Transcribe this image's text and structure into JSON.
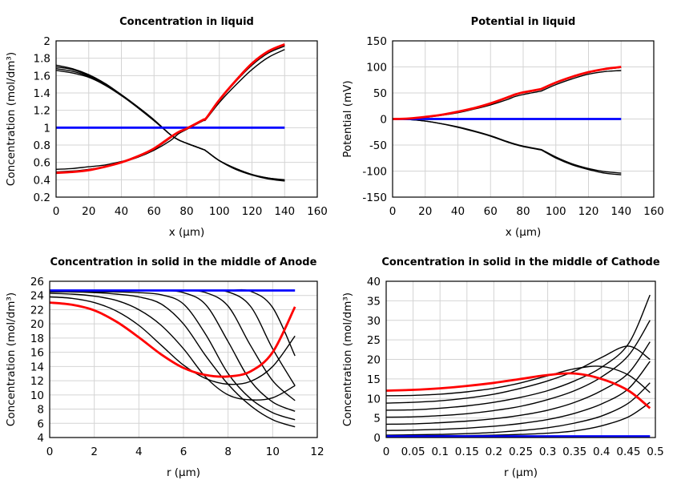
{
  "chart_data": [
    {
      "type": "line",
      "title": "Concentration in liquid",
      "xlabel": "x (µm)",
      "ylabel": "Concentration (mol/dm³)",
      "xlim": [
        0,
        160
      ],
      "ylim": [
        0.2,
        2
      ],
      "xticks": [
        "0",
        "20",
        "40",
        "60",
        "80",
        "100",
        "120",
        "140",
        "160"
      ],
      "yticks": [
        "0.2",
        "0.4",
        "0.6",
        "0.8",
        "1",
        "1.2",
        "1.4",
        "1.6",
        "1.8",
        "2"
      ],
      "grid": true,
      "x": [
        0,
        10,
        20,
        30,
        40,
        50,
        60,
        70,
        75,
        80,
        90,
        92,
        100,
        110,
        120,
        130,
        140
      ],
      "series": [
        {
          "color": "#000000",
          "values": [
            1.72,
            1.68,
            1.61,
            1.51,
            1.38,
            1.24,
            1.09,
            0.92,
            0.86,
            0.82,
            0.75,
            0.73,
            0.62,
            0.53,
            0.46,
            0.42,
            0.4
          ]
        },
        {
          "color": "#000000",
          "values": [
            1.7,
            1.67,
            1.6,
            1.5,
            1.38,
            1.24,
            1.09,
            0.92,
            0.86,
            0.82,
            0.75,
            0.73,
            0.62,
            0.53,
            0.46,
            0.42,
            0.395
          ]
        },
        {
          "color": "#000000",
          "values": [
            1.68,
            1.65,
            1.59,
            1.49,
            1.37,
            1.24,
            1.09,
            0.92,
            0.86,
            0.82,
            0.75,
            0.73,
            0.62,
            0.53,
            0.46,
            0.415,
            0.39
          ]
        },
        {
          "color": "#000000",
          "values": [
            1.66,
            1.63,
            1.58,
            1.49,
            1.37,
            1.23,
            1.08,
            0.92,
            0.86,
            0.82,
            0.75,
            0.73,
            0.62,
            0.52,
            0.455,
            0.41,
            0.385
          ]
        },
        {
          "color": "#000000",
          "values": [
            0.52,
            0.53,
            0.55,
            0.57,
            0.61,
            0.66,
            0.74,
            0.85,
            0.93,
            0.98,
            1.08,
            1.1,
            1.29,
            1.49,
            1.67,
            1.81,
            1.9
          ]
        },
        {
          "color": "#000000",
          "values": [
            0.49,
            0.5,
            0.52,
            0.55,
            0.6,
            0.66,
            0.75,
            0.88,
            0.95,
            0.99,
            1.08,
            1.1,
            1.31,
            1.53,
            1.72,
            1.86,
            1.94
          ]
        },
        {
          "color": "#0000ff",
          "values": [
            1,
            1,
            1,
            1,
            1,
            1,
            1,
            1,
            1,
            1,
            1,
            1,
            1,
            1,
            1,
            1,
            1
          ]
        },
        {
          "color": "#ff0000",
          "values": [
            0.48,
            0.49,
            0.51,
            0.55,
            0.6,
            0.67,
            0.76,
            0.89,
            0.95,
            0.99,
            1.09,
            1.11,
            1.32,
            1.54,
            1.74,
            1.88,
            1.96
          ]
        }
      ]
    },
    {
      "type": "line",
      "title": "Potential in liquid",
      "xlabel": "x (µm)",
      "ylabel": "Potential (mV)",
      "xlim": [
        0,
        160
      ],
      "ylim": [
        -150,
        150
      ],
      "xticks": [
        "0",
        "20",
        "40",
        "60",
        "80",
        "100",
        "120",
        "140",
        "160"
      ],
      "yticks": [
        "-150",
        "-100",
        "-50",
        "0",
        "50",
        "100",
        "150"
      ],
      "grid": true,
      "x": [
        0,
        10,
        20,
        30,
        40,
        50,
        60,
        70,
        75,
        80,
        90,
        92,
        100,
        110,
        120,
        130,
        140
      ],
      "series": [
        {
          "color": "#000000",
          "values": [
            0,
            1,
            3,
            7,
            12,
            19,
            27,
            37,
            43,
            47,
            53,
            55,
            66,
            77,
            86,
            91,
            93
          ]
        },
        {
          "color": "#000000",
          "values": [
            0,
            1,
            4,
            8,
            13,
            20,
            29,
            40,
            46,
            50,
            56,
            58,
            69,
            80,
            89,
            95,
            99
          ]
        },
        {
          "color": "#000000",
          "values": [
            0,
            -1,
            -4,
            -9,
            -15,
            -23,
            -32,
            -43,
            -48,
            -52,
            -58,
            -60,
            -73,
            -86,
            -95,
            -101,
            -104
          ]
        },
        {
          "color": "#000000",
          "values": [
            0,
            -1,
            -4,
            -9,
            -16,
            -24,
            -33,
            -44,
            -49,
            -53,
            -59,
            -61,
            -75,
            -88,
            -97,
            -104,
            -107
          ]
        },
        {
          "color": "#0000ff",
          "values": [
            0,
            0,
            0,
            0,
            0,
            0,
            0,
            0,
            0,
            0,
            0,
            0,
            0,
            0,
            0,
            0,
            0
          ]
        },
        {
          "color": "#ff0000",
          "values": [
            0,
            1,
            4,
            8,
            14,
            21,
            30,
            41,
            47,
            51,
            57,
            59,
            70,
            81,
            90,
            96,
            100
          ]
        }
      ]
    },
    {
      "type": "line",
      "title": "Concentration in solid in the middle of Anode",
      "xlabel": "r (µm)",
      "ylabel": "Concentration (mol/dm³)",
      "xlim": [
        0,
        12
      ],
      "ylim": [
        4,
        26
      ],
      "xticks": [
        "0",
        "2",
        "4",
        "6",
        "8",
        "10",
        "12"
      ],
      "yticks": [
        "4",
        "6",
        "8",
        "10",
        "12",
        "14",
        "16",
        "18",
        "20",
        "22",
        "24",
        "26"
      ],
      "grid": true,
      "x": [
        0,
        1,
        2,
        3,
        4,
        5,
        6,
        7,
        8,
        9,
        10,
        11
      ],
      "series": [
        {
          "color": "#000000",
          "values": [
            24.7,
            24.7,
            24.7,
            24.7,
            24.7,
            24.7,
            24.7,
            24.7,
            24.7,
            24.6,
            22.3,
            15.5
          ]
        },
        {
          "color": "#000000",
          "values": [
            24.7,
            24.7,
            24.7,
            24.7,
            24.7,
            24.7,
            24.7,
            24.7,
            24.5,
            22.5,
            16.5,
            11.3
          ]
        },
        {
          "color": "#000000",
          "values": [
            24.7,
            24.7,
            24.7,
            24.7,
            24.7,
            24.7,
            24.7,
            24.4,
            22.5,
            17,
            12,
            9.2
          ]
        },
        {
          "color": "#000000",
          "values": [
            24.7,
            24.7,
            24.7,
            24.7,
            24.7,
            24.7,
            24.4,
            22.7,
            17.5,
            12,
            9,
            7.7
          ]
        },
        {
          "color": "#000000",
          "values": [
            24.6,
            24.6,
            24.5,
            24.5,
            24.4,
            24.1,
            22.8,
            18.5,
            13,
            9.5,
            7.5,
            6.5
          ]
        },
        {
          "color": "#000000",
          "values": [
            24.5,
            24.5,
            24.4,
            24.2,
            23.8,
            22.8,
            20,
            15.5,
            11.5,
            8.5,
            6.5,
            5.5
          ]
        },
        {
          "color": "#000000",
          "values": [
            24.3,
            24.2,
            23.9,
            23.3,
            22,
            19.8,
            16.5,
            12.5,
            10,
            9.3,
            9.6,
            11.3
          ]
        },
        {
          "color": "#000000",
          "values": [
            23.8,
            23.6,
            23,
            21.8,
            19.8,
            17,
            14.2,
            12.3,
            11.5,
            11.9,
            14,
            18.3
          ]
        },
        {
          "color": "#0000ff",
          "values": [
            24.7,
            24.7,
            24.7,
            24.7,
            24.7,
            24.7,
            24.7,
            24.7,
            24.7,
            24.7,
            24.7,
            24.7
          ]
        },
        {
          "color": "#ff0000",
          "values": [
            23,
            22.7,
            21.9,
            20.3,
            18.1,
            15.7,
            13.8,
            12.8,
            12.6,
            13.3,
            16,
            22.4
          ]
        }
      ]
    },
    {
      "type": "line",
      "title": "Concentration in solid in the middle of Cathode",
      "xlabel": "r (µm)",
      "ylabel": "Concentration (mol/dm³)",
      "xlim": [
        0,
        0.5
      ],
      "ylim": [
        0,
        40
      ],
      "xticks": [
        "0",
        "0.05",
        "0.1",
        "0.15",
        "0.2",
        "0.25",
        "0.3",
        "0.35",
        "0.4",
        "0.45",
        "0.5"
      ],
      "yticks": [
        "0",
        "5",
        "10",
        "15",
        "20",
        "25",
        "30",
        "35",
        "40"
      ],
      "grid": true,
      "x": [
        0,
        0.05,
        0.1,
        0.15,
        0.2,
        0.25,
        0.3,
        0.35,
        0.4,
        0.45,
        0.49
      ],
      "series": [
        {
          "color": "#000000",
          "values": [
            0.4,
            0.4,
            0.5,
            0.5,
            0.6,
            0.8,
            1.1,
            1.7,
            3,
            5.3,
            9
          ]
        },
        {
          "color": "#000000",
          "values": [
            0.6,
            0.7,
            0.8,
            1,
            1.3,
            1.8,
            2.5,
            3.7,
            5.5,
            8.8,
            14
          ]
        },
        {
          "color": "#000000",
          "values": [
            1.8,
            1.9,
            2.1,
            2.4,
            2.9,
            3.6,
            4.6,
            6.2,
            8.6,
            12.5,
            19.5
          ]
        },
        {
          "color": "#000000",
          "values": [
            3.4,
            3.5,
            3.8,
            4.2,
            4.8,
            5.7,
            7,
            9,
            12,
            16.5,
            24.5
          ]
        },
        {
          "color": "#000000",
          "values": [
            5.2,
            5.3,
            5.6,
            6.1,
            6.9,
            8,
            9.7,
            12,
            15.5,
            21,
            30
          ]
        },
        {
          "color": "#000000",
          "values": [
            7,
            7.1,
            7.5,
            8.1,
            9,
            10.3,
            12,
            14.5,
            18,
            24,
            36.5
          ]
        },
        {
          "color": "#000000",
          "values": [
            8.8,
            9,
            9.4,
            10.1,
            11.1,
            12.6,
            14.5,
            17,
            20.5,
            23.4,
            20
          ]
        },
        {
          "color": "#000000",
          "values": [
            10.7,
            10.8,
            11.1,
            11.7,
            12.6,
            14,
            15.8,
            17.6,
            18.2,
            16,
            11.5
          ]
        },
        {
          "color": "#0000ff",
          "values": [
            0.3,
            0.3,
            0.3,
            0.3,
            0.3,
            0.3,
            0.3,
            0.3,
            0.3,
            0.3,
            0.3
          ]
        },
        {
          "color": "#ff0000",
          "values": [
            12,
            12.2,
            12.6,
            13.2,
            14,
            15,
            16,
            16.4,
            15,
            12,
            7.5
          ]
        }
      ]
    }
  ]
}
